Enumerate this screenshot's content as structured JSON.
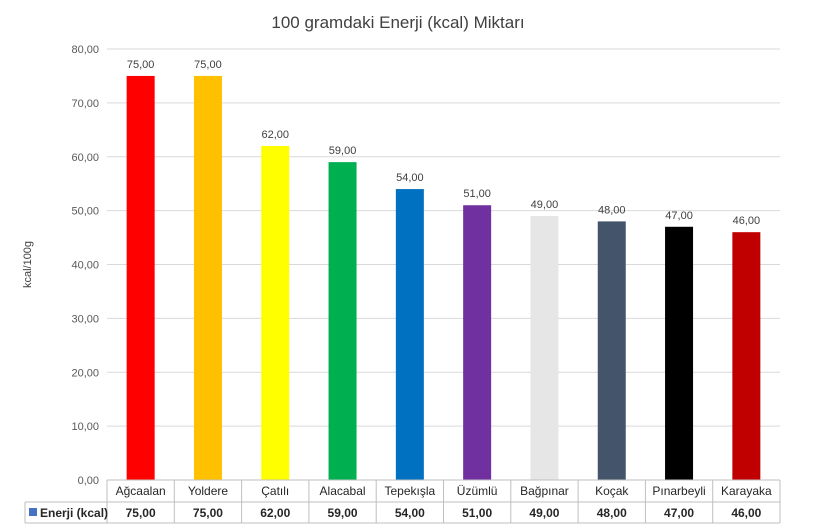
{
  "chart_data": {
    "type": "bar",
    "title": "100 gramdaki Enerji (kcal) Miktarı",
    "xlabel": "",
    "ylabel": "kcal/100g",
    "ylim": [
      0,
      80
    ],
    "yticks": [
      "0,00",
      "10,00",
      "20,00",
      "30,00",
      "40,00",
      "50,00",
      "60,00",
      "70,00",
      "80,00"
    ],
    "grid": true,
    "legend": "bottom (data table)",
    "categories": [
      "Ağcaalan",
      "Yoldere",
      "Çatılı",
      "Alacabal",
      "Tepekışla",
      "Üzümlü",
      "Bağpınar",
      "Koçak",
      "Pınarbeyli",
      "Karayaka"
    ],
    "series": [
      {
        "name": "Enerji (kcal)",
        "values": [
          75,
          75,
          62,
          59,
          54,
          51,
          49,
          48,
          47,
          46
        ],
        "labels": [
          "75,00",
          "75,00",
          "62,00",
          "59,00",
          "54,00",
          "51,00",
          "49,00",
          "48,00",
          "47,00",
          "46,00"
        ]
      }
    ],
    "colors": [
      "#ff0000",
      "#ffc000",
      "#ffff00",
      "#00b050",
      "#0070c0",
      "#7030a0",
      "#e7e6e6",
      "#44546a",
      "#000000",
      "#c00000"
    ],
    "legend_marker_color": "#4472c4"
  }
}
